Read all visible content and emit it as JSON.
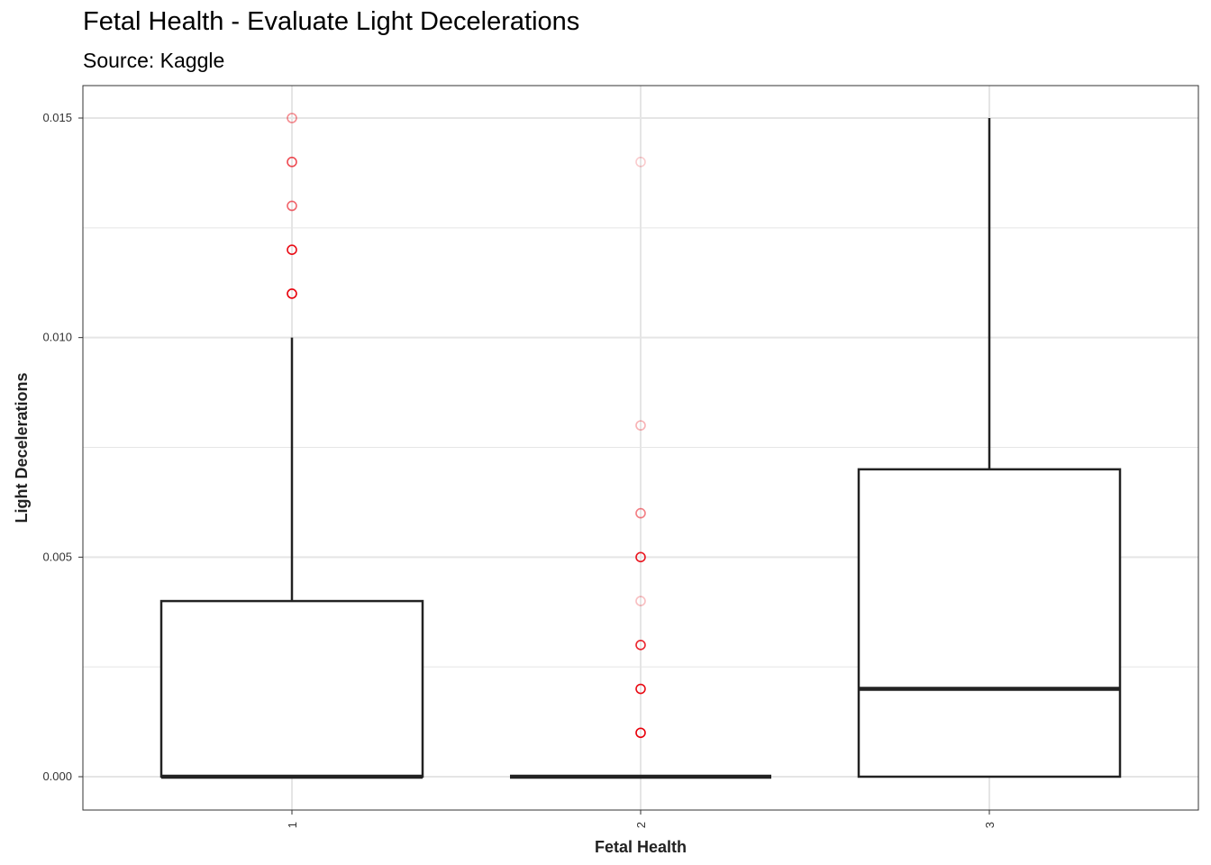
{
  "chart_data": {
    "type": "boxplot",
    "title": "Fetal Health - Evaluate Light Decelerations",
    "subtitle": "Source: Kaggle",
    "xlabel": "Fetal Health",
    "ylabel": "Light Decelerations",
    "categories": [
      "1",
      "2",
      "3"
    ],
    "ylim": [
      -0.0015,
      0.0158
    ],
    "yticks": [
      0.0,
      0.005,
      0.01,
      0.015
    ],
    "ytick_labels": [
      "0.000",
      "0.005",
      "0.010",
      "0.015"
    ],
    "grid": true,
    "boxes": [
      {
        "category": "1",
        "min": 0.0,
        "q1": 0.0,
        "median": 0.0,
        "q3": 0.004,
        "max": 0.01,
        "outliers": [
          0.011,
          0.012,
          0.013,
          0.014,
          0.015
        ],
        "outlier_opacity": [
          1.0,
          0.95,
          0.6,
          0.7,
          0.45
        ]
      },
      {
        "category": "2",
        "min": 0.0,
        "q1": 0.0,
        "median": 0.0,
        "q3": 0.0,
        "max": 0.0,
        "outliers": [
          0.001,
          0.002,
          0.003,
          0.004,
          0.005,
          0.006,
          0.008,
          0.014
        ],
        "outlier_opacity": [
          1.0,
          0.95,
          0.85,
          0.25,
          0.9,
          0.5,
          0.3,
          0.2
        ]
      },
      {
        "category": "3",
        "min": 0.0,
        "q1": 0.0,
        "median": 0.002,
        "q3": 0.007,
        "max": 0.015,
        "outliers": [],
        "outlier_opacity": []
      }
    ],
    "colors": {
      "box": "#222222",
      "outlier": "#e8000b",
      "grid": "#e5e5e5",
      "panel_border": "#333333"
    }
  }
}
